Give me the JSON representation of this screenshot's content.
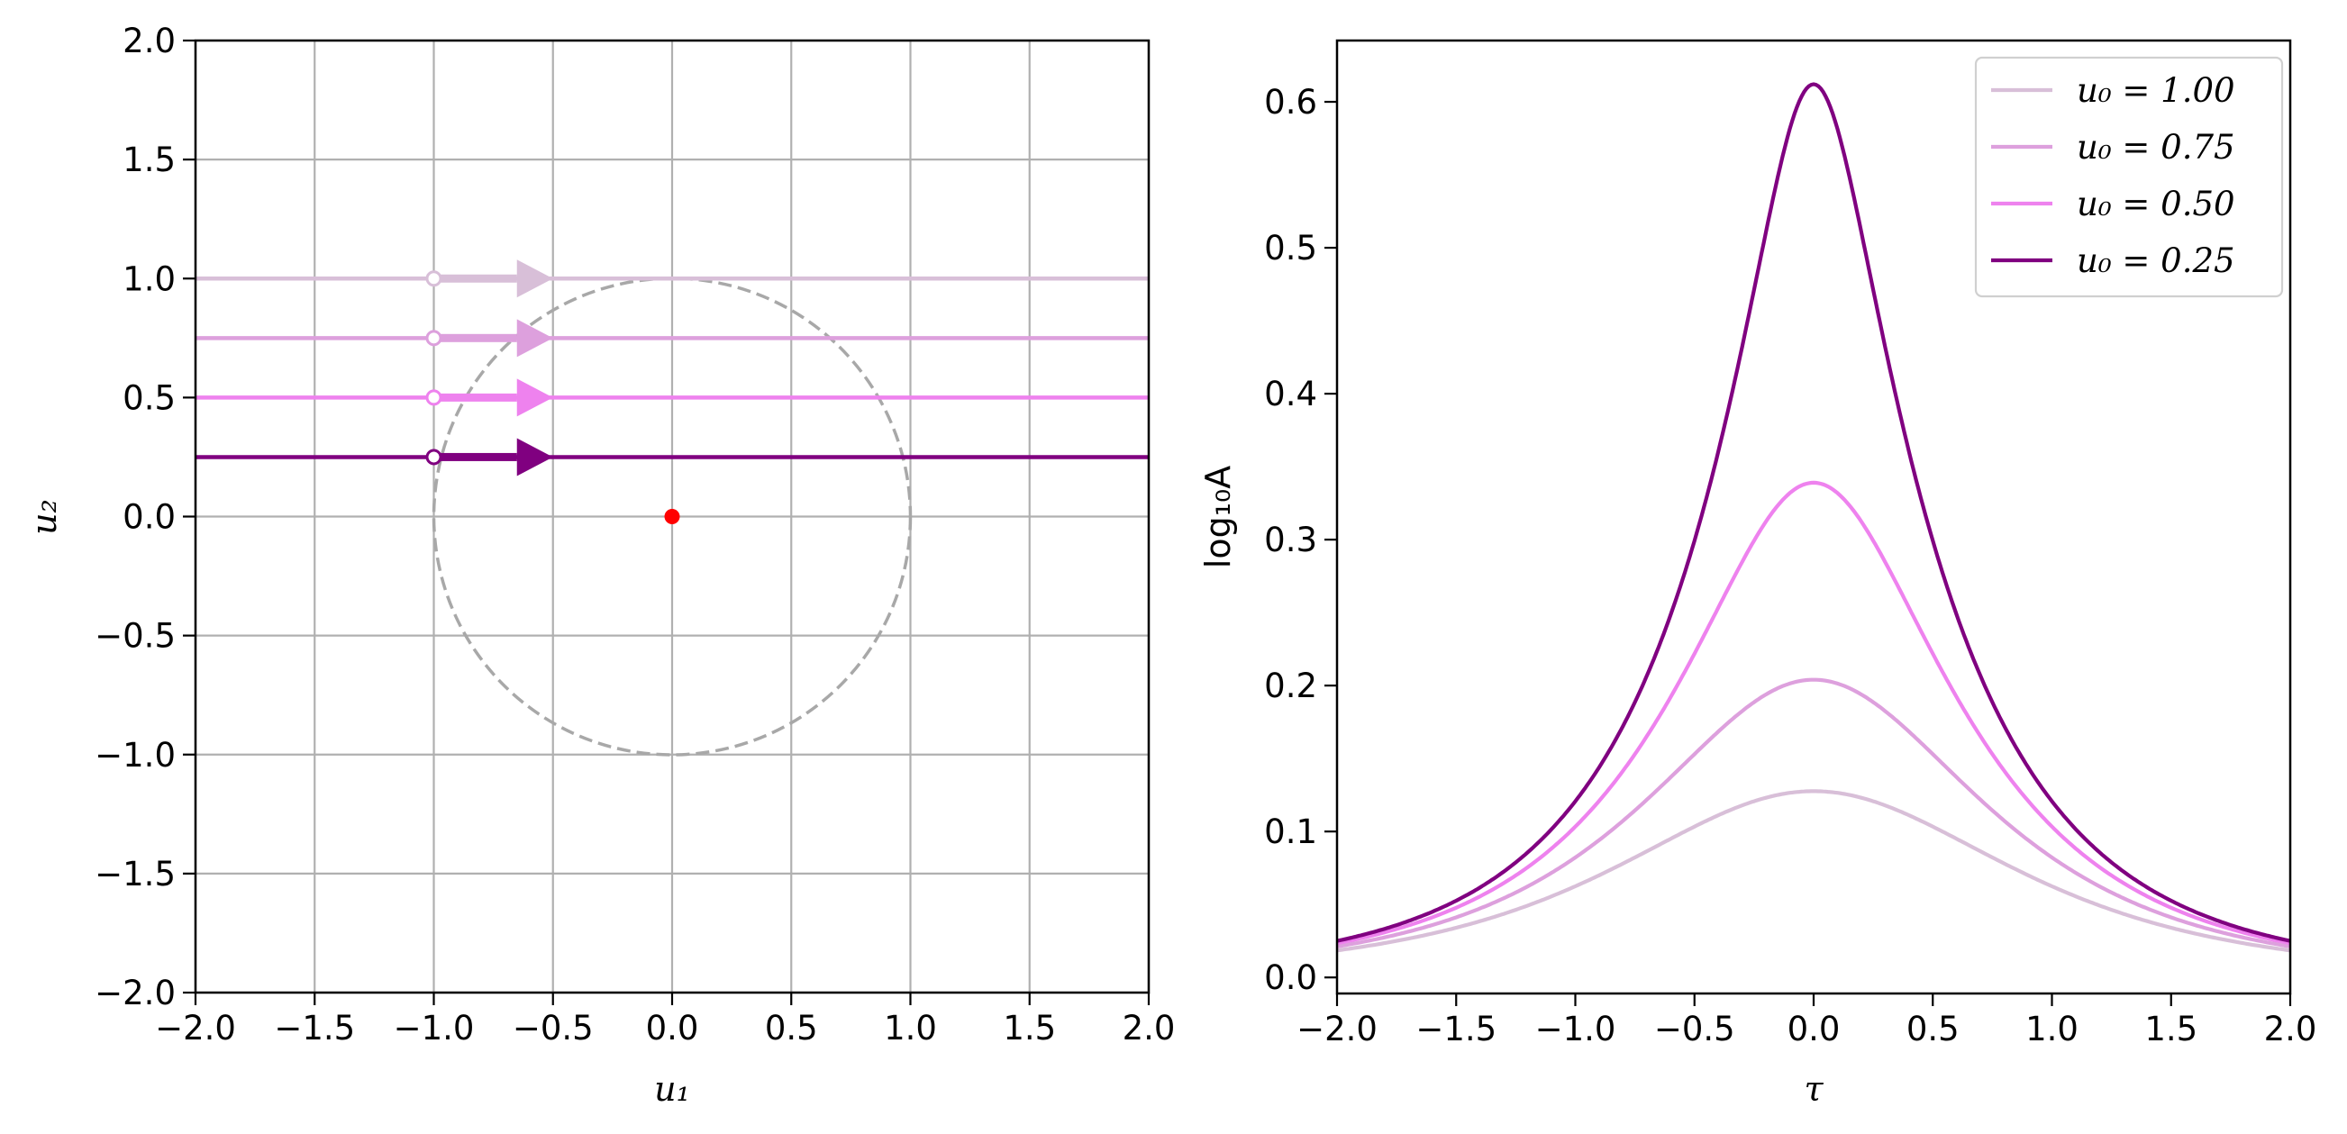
{
  "chart_data": [
    {
      "type": "line",
      "xlabel": "u₁",
      "ylabel": "u₂",
      "xlim": [
        -2,
        2
      ],
      "ylim": [
        -2,
        2
      ],
      "xticks": [
        "−2.0",
        "−1.5",
        "−1.0",
        "−0.5",
        "0.0",
        "0.5",
        "1.0",
        "1.5",
        "2.0"
      ],
      "yticks": [
        "−2.0",
        "−1.5",
        "−1.0",
        "−0.5",
        "0.0",
        "0.5",
        "1.0",
        "1.5",
        "2.0"
      ],
      "grid": true,
      "lens": {
        "x": 0,
        "y": 0,
        "color": "#ff0000"
      },
      "einstein_ring": {
        "radius": 1,
        "color": "#a8a8a8",
        "style": "dashed"
      },
      "trajectories": [
        {
          "u0": 1.0,
          "start_u1": -1.0,
          "arrow_to_u1": -0.5,
          "color": "#d8bfd8"
        },
        {
          "u0": 0.75,
          "start_u1": -1.0,
          "arrow_to_u1": -0.5,
          "color": "#dda0dd"
        },
        {
          "u0": 0.5,
          "start_u1": -1.0,
          "arrow_to_u1": -0.5,
          "color": "#ee82ee"
        },
        {
          "u0": 0.25,
          "start_u1": -1.0,
          "arrow_to_u1": -0.5,
          "color": "#800080"
        }
      ]
    },
    {
      "type": "line",
      "xlabel": "τ",
      "ylabel": "log₁₀A",
      "xlim": [
        -2,
        2
      ],
      "ylim": [
        -0.011,
        0.642
      ],
      "xticks": [
        "−2.0",
        "−1.5",
        "−1.0",
        "−0.5",
        "0.0",
        "0.5",
        "1.0",
        "1.5",
        "2.0"
      ],
      "yticks": [
        "0.0",
        "0.1",
        "0.2",
        "0.3",
        "0.4",
        "0.5",
        "0.6"
      ],
      "grid": false,
      "legend": "top-right",
      "series": [
        {
          "name": "u₀ = 1.00",
          "u0": 1.0,
          "peak": 0.128,
          "color": "#d8bfd8"
        },
        {
          "name": "u₀ = 0.75",
          "u0": 0.75,
          "peak": 0.204,
          "color": "#dda0dd"
        },
        {
          "name": "u₀ = 0.50",
          "u0": 0.5,
          "peak": 0.34,
          "color": "#ee82ee"
        },
        {
          "name": "u₀ = 0.25",
          "u0": 0.25,
          "peak": 0.612,
          "color": "#800080"
        }
      ]
    }
  ]
}
